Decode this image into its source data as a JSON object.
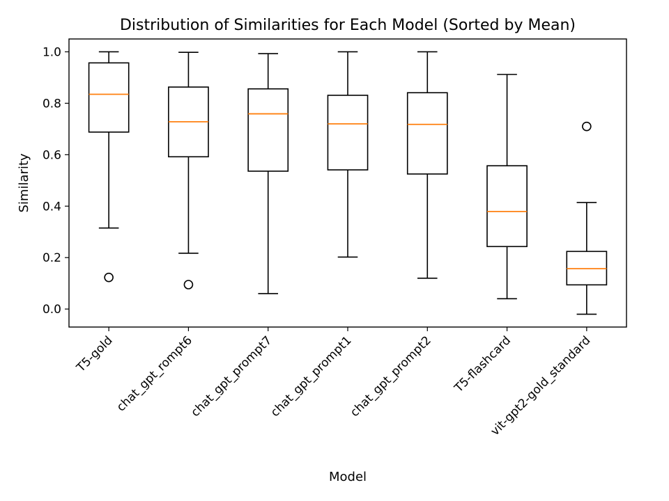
{
  "chart_data": {
    "type": "box",
    "title": "Distribution of Similarities for Each Model (Sorted by Mean)",
    "xlabel": "Model",
    "ylabel": "Similarity",
    "ylim": [
      -0.07,
      1.05
    ],
    "yticks": [
      0.0,
      0.2,
      0.4,
      0.6,
      0.8,
      1.0
    ],
    "ytick_labels": [
      "0.0",
      "0.2",
      "0.4",
      "0.6",
      "0.8",
      "1.0"
    ],
    "grid": false,
    "categories": [
      "T5-gold",
      "chat_gpt_rompt6",
      "chat_gpt_prompt7",
      "chat_gpt_prompt1",
      "chat_gpt_prompt2",
      "T5-flashcard",
      "vit-gpt2-gold_standard"
    ],
    "boxes": [
      {
        "whisker_low": 0.315,
        "q1": 0.688,
        "median": 0.835,
        "q3": 0.957,
        "whisker_high": 1.0,
        "outliers": [
          0.123
        ]
      },
      {
        "whisker_low": 0.217,
        "q1": 0.592,
        "median": 0.728,
        "q3": 0.863,
        "whisker_high": 0.998,
        "outliers": [
          0.095
        ]
      },
      {
        "whisker_low": 0.06,
        "q1": 0.536,
        "median": 0.759,
        "q3": 0.856,
        "whisker_high": 0.993,
        "outliers": []
      },
      {
        "whisker_low": 0.202,
        "q1": 0.541,
        "median": 0.72,
        "q3": 0.831,
        "whisker_high": 1.0,
        "outliers": []
      },
      {
        "whisker_low": 0.12,
        "q1": 0.525,
        "median": 0.718,
        "q3": 0.841,
        "whisker_high": 1.0,
        "outliers": []
      },
      {
        "whisker_low": 0.04,
        "q1": 0.243,
        "median": 0.379,
        "q3": 0.557,
        "whisker_high": 0.912,
        "outliers": []
      },
      {
        "whisker_low": -0.02,
        "q1": 0.094,
        "median": 0.157,
        "q3": 0.224,
        "whisker_high": 0.414,
        "outliers": [
          0.71
        ]
      }
    ],
    "colors": {
      "box": "#000000",
      "median": "#ff7f0e",
      "outlier": "#000000"
    }
  }
}
